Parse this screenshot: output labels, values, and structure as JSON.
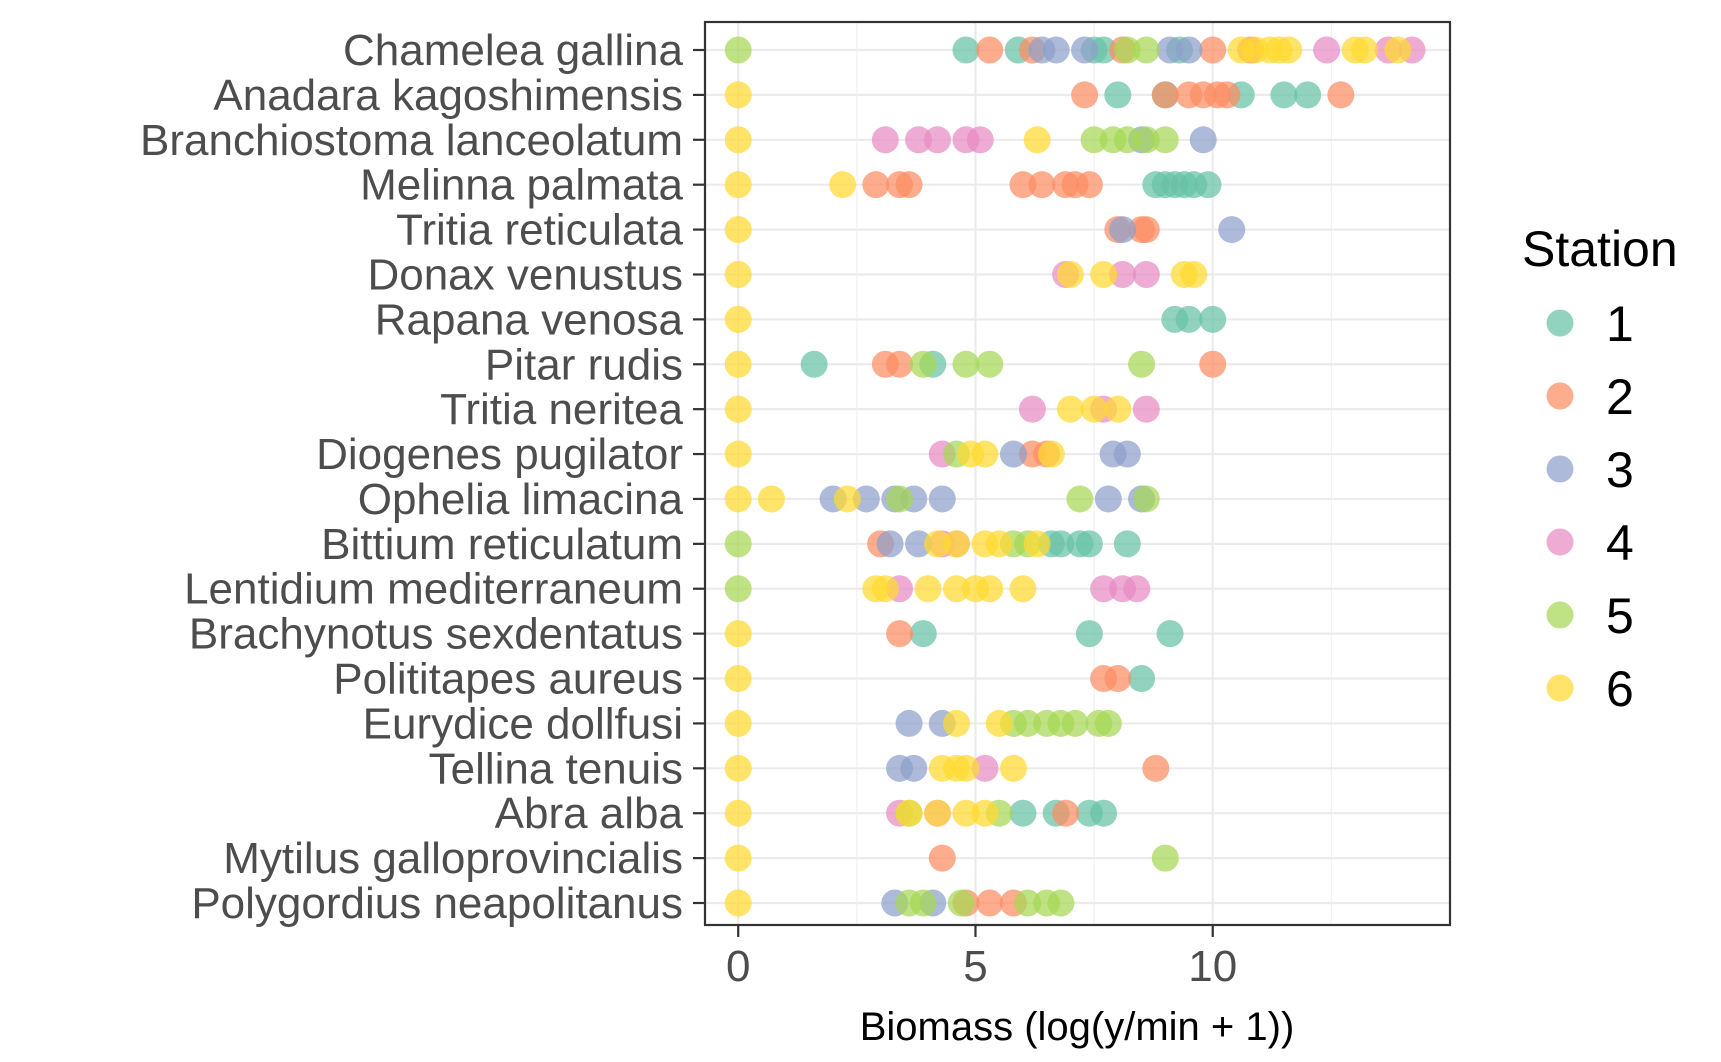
{
  "chart_data": {
    "type": "scatter",
    "xlabel": "Biomass (log(y/min + 1))",
    "ylabel": "",
    "xlim": [
      -0.7,
      15
    ],
    "xticks": [
      0,
      5,
      10
    ],
    "grid": true,
    "legend_title": "Station",
    "legend_position": "right",
    "categories": [
      "Chamelea gallina",
      "Anadara kagoshimensis",
      "Branchiostoma lanceolatum",
      "Melinna palmata",
      "Tritia reticulata",
      "Donax venustus",
      "Rapana venosa",
      "Pitar rudis",
      "Tritia neritea",
      "Diogenes pugilator",
      "Ophelia limacina",
      "Bittium reticulatum",
      "Lentidium mediterraneum",
      "Brachynotus sexdentatus",
      "Polititapes aureus",
      "Eurydice dollfusi",
      "Tellina tenuis",
      "Abra alba",
      "Mytilus galloprovincialis",
      "Polygordius neapolitanus"
    ],
    "series": [
      {
        "name": "1",
        "color": "#66c2a5",
        "points": [
          [
            "Chamelea gallina",
            4.8
          ],
          [
            "Chamelea gallina",
            5.9
          ],
          [
            "Chamelea gallina",
            7.5
          ],
          [
            "Chamelea gallina",
            7.7
          ],
          [
            "Chamelea gallina",
            9.3
          ],
          [
            "Anadara kagoshimensis",
            8.0
          ],
          [
            "Anadara kagoshimensis",
            9.0
          ],
          [
            "Anadara kagoshimensis",
            10.6
          ],
          [
            "Anadara kagoshimensis",
            11.5
          ],
          [
            "Anadara kagoshimensis",
            12.0
          ],
          [
            "Melinna palmata",
            8.8
          ],
          [
            "Melinna palmata",
            9.0
          ],
          [
            "Melinna palmata",
            9.2
          ],
          [
            "Melinna palmata",
            9.4
          ],
          [
            "Melinna palmata",
            9.6
          ],
          [
            "Melinna palmata",
            9.9
          ],
          [
            "Rapana venosa",
            9.2
          ],
          [
            "Rapana venosa",
            9.5
          ],
          [
            "Rapana venosa",
            10.0
          ],
          [
            "Pitar rudis",
            1.6
          ],
          [
            "Pitar rudis",
            4.1
          ],
          [
            "Bittium reticulatum",
            6.6
          ],
          [
            "Bittium reticulatum",
            6.8
          ],
          [
            "Bittium reticulatum",
            7.2
          ],
          [
            "Bittium reticulatum",
            7.4
          ],
          [
            "Bittium reticulatum",
            8.2
          ],
          [
            "Brachynotus sexdentatus",
            3.9
          ],
          [
            "Brachynotus sexdentatus",
            7.4
          ],
          [
            "Brachynotus sexdentatus",
            9.1
          ],
          [
            "Polititapes aureus",
            8.5
          ],
          [
            "Abra alba",
            6.0
          ],
          [
            "Abra alba",
            6.7
          ],
          [
            "Abra alba",
            7.4
          ],
          [
            "Abra alba",
            7.7
          ]
        ]
      },
      {
        "name": "2",
        "color": "#fc8d62",
        "points": [
          [
            "Chamelea gallina",
            5.3
          ],
          [
            "Chamelea gallina",
            6.2
          ],
          [
            "Chamelea gallina",
            8.1
          ],
          [
            "Chamelea gallina",
            10.0
          ],
          [
            "Chamelea gallina",
            10.8
          ],
          [
            "Anadara kagoshimensis",
            7.3
          ],
          [
            "Anadara kagoshimensis",
            9.0
          ],
          [
            "Anadara kagoshimensis",
            9.5
          ],
          [
            "Anadara kagoshimensis",
            9.8
          ],
          [
            "Anadara kagoshimensis",
            10.1
          ],
          [
            "Anadara kagoshimensis",
            10.3
          ],
          [
            "Anadara kagoshimensis",
            12.7
          ],
          [
            "Melinna palmata",
            2.9
          ],
          [
            "Melinna palmata",
            3.4
          ],
          [
            "Melinna palmata",
            3.6
          ],
          [
            "Melinna palmata",
            6.0
          ],
          [
            "Melinna palmata",
            6.4
          ],
          [
            "Melinna palmata",
            6.9
          ],
          [
            "Melinna palmata",
            7.1
          ],
          [
            "Melinna palmata",
            7.4
          ],
          [
            "Tritia reticulata",
            8.0
          ],
          [
            "Tritia reticulata",
            8.5
          ],
          [
            "Tritia reticulata",
            8.6
          ],
          [
            "Pitar rudis",
            3.1
          ],
          [
            "Pitar rudis",
            3.4
          ],
          [
            "Pitar rudis",
            10.0
          ],
          [
            "Diogenes pugilator",
            6.2
          ],
          [
            "Diogenes pugilator",
            6.5
          ],
          [
            "Bittium reticulatum",
            3.0
          ],
          [
            "Brachynotus sexdentatus",
            3.4
          ],
          [
            "Polititapes aureus",
            7.7
          ],
          [
            "Polititapes aureus",
            8.0
          ],
          [
            "Tellina tenuis",
            8.8
          ],
          [
            "Abra alba",
            6.9
          ],
          [
            "Mytilus galloprovincialis",
            4.3
          ],
          [
            "Polygordius neapolitanus",
            4.8
          ],
          [
            "Polygordius neapolitanus",
            5.3
          ],
          [
            "Polygordius neapolitanus",
            5.8
          ]
        ]
      },
      {
        "name": "3",
        "color": "#8da0cb",
        "points": [
          [
            "Chamelea gallina",
            6.4
          ],
          [
            "Chamelea gallina",
            6.7
          ],
          [
            "Chamelea gallina",
            7.3
          ],
          [
            "Chamelea gallina",
            9.1
          ],
          [
            "Chamelea gallina",
            9.5
          ],
          [
            "Branchiostoma lanceolatum",
            8.5
          ],
          [
            "Branchiostoma lanceolatum",
            9.8
          ],
          [
            "Tritia reticulata",
            8.1
          ],
          [
            "Tritia reticulata",
            10.4
          ],
          [
            "Diogenes pugilator",
            5.8
          ],
          [
            "Diogenes pugilator",
            7.9
          ],
          [
            "Diogenes pugilator",
            8.2
          ],
          [
            "Ophelia limacina",
            2.0
          ],
          [
            "Ophelia limacina",
            2.7
          ],
          [
            "Ophelia limacina",
            3.3
          ],
          [
            "Ophelia limacina",
            3.7
          ],
          [
            "Ophelia limacina",
            4.3
          ],
          [
            "Ophelia limacina",
            7.8
          ],
          [
            "Ophelia limacina",
            8.5
          ],
          [
            "Bittium reticulatum",
            3.2
          ],
          [
            "Bittium reticulatum",
            3.8
          ],
          [
            "Eurydice dollfusi",
            3.6
          ],
          [
            "Eurydice dollfusi",
            4.3
          ],
          [
            "Tellina tenuis",
            3.4
          ],
          [
            "Tellina tenuis",
            3.7
          ],
          [
            "Polygordius neapolitanus",
            3.3
          ],
          [
            "Polygordius neapolitanus",
            4.1
          ]
        ]
      },
      {
        "name": "4",
        "color": "#e78ac3",
        "points": [
          [
            "Chamelea gallina",
            12.4
          ],
          [
            "Chamelea gallina",
            13.7
          ],
          [
            "Chamelea gallina",
            14.2
          ],
          [
            "Branchiostoma lanceolatum",
            3.1
          ],
          [
            "Branchiostoma lanceolatum",
            3.8
          ],
          [
            "Branchiostoma lanceolatum",
            4.2
          ],
          [
            "Branchiostoma lanceolatum",
            4.8
          ],
          [
            "Branchiostoma lanceolatum",
            5.1
          ],
          [
            "Donax venustus",
            6.9
          ],
          [
            "Donax venustus",
            8.1
          ],
          [
            "Donax venustus",
            8.6
          ],
          [
            "Tritia neritea",
            6.2
          ],
          [
            "Tritia neritea",
            7.7
          ],
          [
            "Tritia neritea",
            8.6
          ],
          [
            "Diogenes pugilator",
            4.3
          ],
          [
            "Bittium reticulatum",
            4.3
          ],
          [
            "Bittium reticulatum",
            4.6
          ],
          [
            "Lentidium mediterraneum",
            3.4
          ],
          [
            "Lentidium mediterraneum",
            7.7
          ],
          [
            "Lentidium mediterraneum",
            8.1
          ],
          [
            "Lentidium mediterraneum",
            8.4
          ],
          [
            "Tellina tenuis",
            5.2
          ],
          [
            "Abra alba",
            3.4
          ],
          [
            "Abra alba",
            4.2
          ]
        ]
      },
      {
        "name": "5",
        "color": "#a6d854",
        "points": [
          [
            "Chamelea gallina",
            0
          ],
          [
            "Chamelea gallina",
            8.2
          ],
          [
            "Chamelea gallina",
            8.6
          ],
          [
            "Branchiostoma lanceolatum",
            7.5
          ],
          [
            "Branchiostoma lanceolatum",
            7.9
          ],
          [
            "Branchiostoma lanceolatum",
            8.2
          ],
          [
            "Branchiostoma lanceolatum",
            8.6
          ],
          [
            "Branchiostoma lanceolatum",
            9.0
          ],
          [
            "Pitar rudis",
            3.9
          ],
          [
            "Pitar rudis",
            4.8
          ],
          [
            "Pitar rudis",
            5.3
          ],
          [
            "Pitar rudis",
            8.5
          ],
          [
            "Diogenes pugilator",
            4.6
          ],
          [
            "Ophelia limacina",
            3.4
          ],
          [
            "Ophelia limacina",
            7.2
          ],
          [
            "Ophelia limacina",
            8.6
          ],
          [
            "Bittium reticulatum",
            0
          ],
          [
            "Bittium reticulatum",
            5.8
          ],
          [
            "Bittium reticulatum",
            6.1
          ],
          [
            "Lentidium mediterraneum",
            0
          ],
          [
            "Eurydice dollfusi",
            5.8
          ],
          [
            "Eurydice dollfusi",
            6.1
          ],
          [
            "Eurydice dollfusi",
            6.5
          ],
          [
            "Eurydice dollfusi",
            6.8
          ],
          [
            "Eurydice dollfusi",
            7.1
          ],
          [
            "Eurydice dollfusi",
            7.6
          ],
          [
            "Eurydice dollfusi",
            7.8
          ],
          [
            "Abra alba",
            3.6
          ],
          [
            "Abra alba",
            5.5
          ],
          [
            "Mytilus galloprovincialis",
            9.0
          ],
          [
            "Polygordius neapolitanus",
            3.6
          ],
          [
            "Polygordius neapolitanus",
            3.9
          ],
          [
            "Polygordius neapolitanus",
            4.7
          ],
          [
            "Polygordius neapolitanus",
            6.1
          ],
          [
            "Polygordius neapolitanus",
            6.5
          ],
          [
            "Polygordius neapolitanus",
            6.8
          ]
        ]
      },
      {
        "name": "6",
        "color": "#ffd92f",
        "points": [
          [
            "Chamelea gallina",
            10.6
          ],
          [
            "Chamelea gallina",
            10.9
          ],
          [
            "Chamelea gallina",
            11.2
          ],
          [
            "Chamelea gallina",
            11.4
          ],
          [
            "Chamelea gallina",
            11.6
          ],
          [
            "Chamelea gallina",
            13.0
          ],
          [
            "Chamelea gallina",
            13.2
          ],
          [
            "Chamelea gallina",
            13.9
          ],
          [
            "Anadara kagoshimensis",
            0
          ],
          [
            "Branchiostoma lanceolatum",
            0
          ],
          [
            "Branchiostoma lanceolatum",
            6.3
          ],
          [
            "Melinna palmata",
            0
          ],
          [
            "Melinna palmata",
            2.2
          ],
          [
            "Tritia reticulata",
            0
          ],
          [
            "Donax venustus",
            0
          ],
          [
            "Donax venustus",
            7.0
          ],
          [
            "Donax venustus",
            7.7
          ],
          [
            "Donax venustus",
            9.4
          ],
          [
            "Donax venustus",
            9.6
          ],
          [
            "Rapana venosa",
            0
          ],
          [
            "Pitar rudis",
            0
          ],
          [
            "Tritia neritea",
            0
          ],
          [
            "Tritia neritea",
            7.0
          ],
          [
            "Tritia neritea",
            7.5
          ],
          [
            "Tritia neritea",
            8.0
          ],
          [
            "Diogenes pugilator",
            0
          ],
          [
            "Diogenes pugilator",
            4.9
          ],
          [
            "Diogenes pugilator",
            5.2
          ],
          [
            "Diogenes pugilator",
            6.6
          ],
          [
            "Ophelia limacina",
            0
          ],
          [
            "Ophelia limacina",
            0.7
          ],
          [
            "Ophelia limacina",
            2.3
          ],
          [
            "Bittium reticulatum",
            4.2
          ],
          [
            "Bittium reticulatum",
            4.6
          ],
          [
            "Bittium reticulatum",
            5.2
          ],
          [
            "Bittium reticulatum",
            5.5
          ],
          [
            "Bittium reticulatum",
            6.3
          ],
          [
            "Lentidium mediterraneum",
            2.9
          ],
          [
            "Lentidium mediterraneum",
            3.1
          ],
          [
            "Lentidium mediterraneum",
            4.0
          ],
          [
            "Lentidium mediterraneum",
            4.6
          ],
          [
            "Lentidium mediterraneum",
            5.0
          ],
          [
            "Lentidium mediterraneum",
            5.3
          ],
          [
            "Lentidium mediterraneum",
            6.0
          ],
          [
            "Brachynotus sexdentatus",
            0
          ],
          [
            "Polititapes aureus",
            0
          ],
          [
            "Eurydice dollfusi",
            0
          ],
          [
            "Eurydice dollfusi",
            4.6
          ],
          [
            "Eurydice dollfusi",
            5.5
          ],
          [
            "Tellina tenuis",
            0
          ],
          [
            "Tellina tenuis",
            4.3
          ],
          [
            "Tellina tenuis",
            4.6
          ],
          [
            "Tellina tenuis",
            4.8
          ],
          [
            "Tellina tenuis",
            5.8
          ],
          [
            "Abra alba",
            0
          ],
          [
            "Abra alba",
            3.6
          ],
          [
            "Abra alba",
            4.2
          ],
          [
            "Abra alba",
            4.8
          ],
          [
            "Abra alba",
            5.2
          ],
          [
            "Mytilus galloprovincialis",
            0
          ],
          [
            "Polygordius neapolitanus",
            0
          ]
        ]
      }
    ]
  }
}
